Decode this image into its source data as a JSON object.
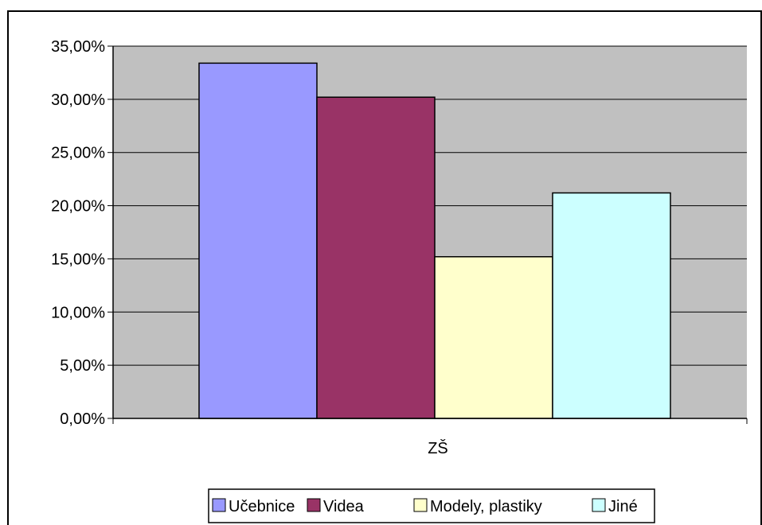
{
  "chart_data": {
    "type": "bar",
    "categories": [
      "ZŠ"
    ],
    "series": [
      {
        "name": "Učebnice",
        "values": [
          0.334
        ],
        "color": "#9999ff"
      },
      {
        "name": "Videa",
        "values": [
          0.302
        ],
        "color": "#993366"
      },
      {
        "name": "Modely, plastiky",
        "values": [
          0.152
        ],
        "color": "#ffffcc"
      },
      {
        "name": "Jiné",
        "values": [
          0.212
        ],
        "color": "#ccffff"
      }
    ],
    "y_ticks": [
      "0,00%",
      "5,00%",
      "10,00%",
      "15,00%",
      "20,00%",
      "25,00%",
      "30,00%",
      "35,00%"
    ],
    "ylim": [
      0,
      0.35
    ],
    "grid": true,
    "legend_position": "bottom",
    "plot_background": "#c0c0c0"
  }
}
